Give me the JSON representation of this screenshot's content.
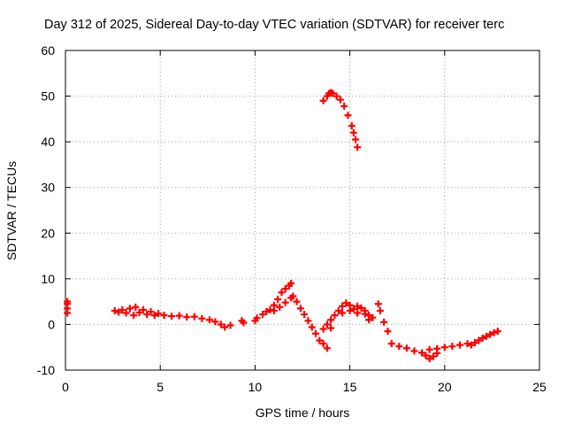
{
  "chart_data": {
    "type": "scatter",
    "title": "Day 312 of 2025, Sidereal Day-to-day VTEC variation (SDTVAR) for receiver terc",
    "xlabel": "GPS time / hours",
    "ylabel": "SDTVAR / TECUs",
    "xlim": [
      0,
      25
    ],
    "ylim": [
      -10,
      60
    ],
    "x_ticks": [
      0,
      5,
      10,
      15,
      20,
      25
    ],
    "y_ticks": [
      -10,
      0,
      10,
      20,
      30,
      40,
      50,
      60
    ],
    "grid": true,
    "color": "#ff0000",
    "series": [
      {
        "name": "SDTVAR",
        "points": [
          [
            0.1,
            2.5
          ],
          [
            0.1,
            3.5
          ],
          [
            0.1,
            4.5
          ],
          [
            0.1,
            5.0
          ],
          [
            2.6,
            3.0
          ],
          [
            2.8,
            2.7
          ],
          [
            3.0,
            3.2
          ],
          [
            3.2,
            2.5
          ],
          [
            3.4,
            3.5
          ],
          [
            3.6,
            2.0
          ],
          [
            3.7,
            3.8
          ],
          [
            3.9,
            2.6
          ],
          [
            4.1,
            3.2
          ],
          [
            4.3,
            2.2
          ],
          [
            4.5,
            2.8
          ],
          [
            4.7,
            2.0
          ],
          [
            4.9,
            2.4
          ],
          [
            5.2,
            2.0
          ],
          [
            5.6,
            1.8
          ],
          [
            6.0,
            1.9
          ],
          [
            6.4,
            1.6
          ],
          [
            6.8,
            1.7
          ],
          [
            7.2,
            1.3
          ],
          [
            7.6,
            1.0
          ],
          [
            7.9,
            0.6
          ],
          [
            8.2,
            0.0
          ],
          [
            8.4,
            -0.6
          ],
          [
            8.7,
            -0.2
          ],
          [
            9.3,
            0.8
          ],
          [
            9.4,
            0.4
          ],
          [
            10.0,
            0.8
          ],
          [
            10.1,
            1.4
          ],
          [
            10.4,
            2.2
          ],
          [
            10.6,
            2.8
          ],
          [
            10.8,
            3.2
          ],
          [
            11.0,
            4.2
          ],
          [
            11.2,
            5.5
          ],
          [
            11.4,
            7.0
          ],
          [
            11.6,
            7.8
          ],
          [
            11.8,
            8.5
          ],
          [
            11.9,
            9.0
          ],
          [
            11.0,
            3.0
          ],
          [
            11.3,
            3.8
          ],
          [
            11.6,
            4.8
          ],
          [
            11.9,
            5.8
          ],
          [
            12.0,
            6.2
          ],
          [
            12.2,
            5.0
          ],
          [
            12.4,
            3.5
          ],
          [
            12.6,
            2.2
          ],
          [
            12.8,
            0.8
          ],
          [
            13.0,
            -0.6
          ],
          [
            13.2,
            -2.0
          ],
          [
            13.4,
            -3.5
          ],
          [
            13.6,
            -4.2
          ],
          [
            13.8,
            -5.2
          ],
          [
            13.6,
            -1.0
          ],
          [
            13.8,
            0.0
          ],
          [
            14.0,
            -0.8
          ],
          [
            14.0,
            1.0
          ],
          [
            14.2,
            2.0
          ],
          [
            14.4,
            3.0
          ],
          [
            14.6,
            4.0
          ],
          [
            14.8,
            4.7
          ],
          [
            15.0,
            4.2
          ],
          [
            15.2,
            3.4
          ],
          [
            15.4,
            4.0
          ],
          [
            15.6,
            3.6
          ],
          [
            15.8,
            3.0
          ],
          [
            16.0,
            2.0
          ],
          [
            16.2,
            1.5
          ],
          [
            14.6,
            2.5
          ],
          [
            15.0,
            3.0
          ],
          [
            15.4,
            2.5
          ],
          [
            15.8,
            2.3
          ],
          [
            16.0,
            1.0
          ],
          [
            16.5,
            4.5
          ],
          [
            16.6,
            3.0
          ],
          [
            16.8,
            0.5
          ],
          [
            17.0,
            -1.5
          ],
          [
            17.2,
            -4.2
          ],
          [
            17.6,
            -4.8
          ],
          [
            18.0,
            -5.2
          ],
          [
            18.4,
            -5.8
          ],
          [
            18.8,
            -6.2
          ],
          [
            19.0,
            -6.8
          ],
          [
            19.2,
            -7.5
          ],
          [
            19.4,
            -7.0
          ],
          [
            19.6,
            -6.3
          ],
          [
            19.2,
            -5.5
          ],
          [
            19.6,
            -5.3
          ],
          [
            20.0,
            -5.0
          ],
          [
            20.4,
            -4.8
          ],
          [
            20.8,
            -4.5
          ],
          [
            21.2,
            -4.2
          ],
          [
            21.4,
            -4.5
          ],
          [
            21.6,
            -4.0
          ],
          [
            21.8,
            -3.5
          ],
          [
            22.0,
            -3.0
          ],
          [
            22.2,
            -2.6
          ],
          [
            22.4,
            -2.2
          ],
          [
            22.6,
            -1.8
          ],
          [
            22.8,
            -1.5
          ],
          [
            13.6,
            49.0
          ],
          [
            13.8,
            50.0
          ],
          [
            13.9,
            50.6
          ],
          [
            14.0,
            50.8
          ],
          [
            14.1,
            50.6
          ],
          [
            14.3,
            50.0
          ],
          [
            14.5,
            49.2
          ],
          [
            14.7,
            47.8
          ],
          [
            14.9,
            45.8
          ],
          [
            15.1,
            43.5
          ],
          [
            15.2,
            42.0
          ],
          [
            15.3,
            40.5
          ],
          [
            15.4,
            38.8
          ]
        ]
      }
    ]
  }
}
